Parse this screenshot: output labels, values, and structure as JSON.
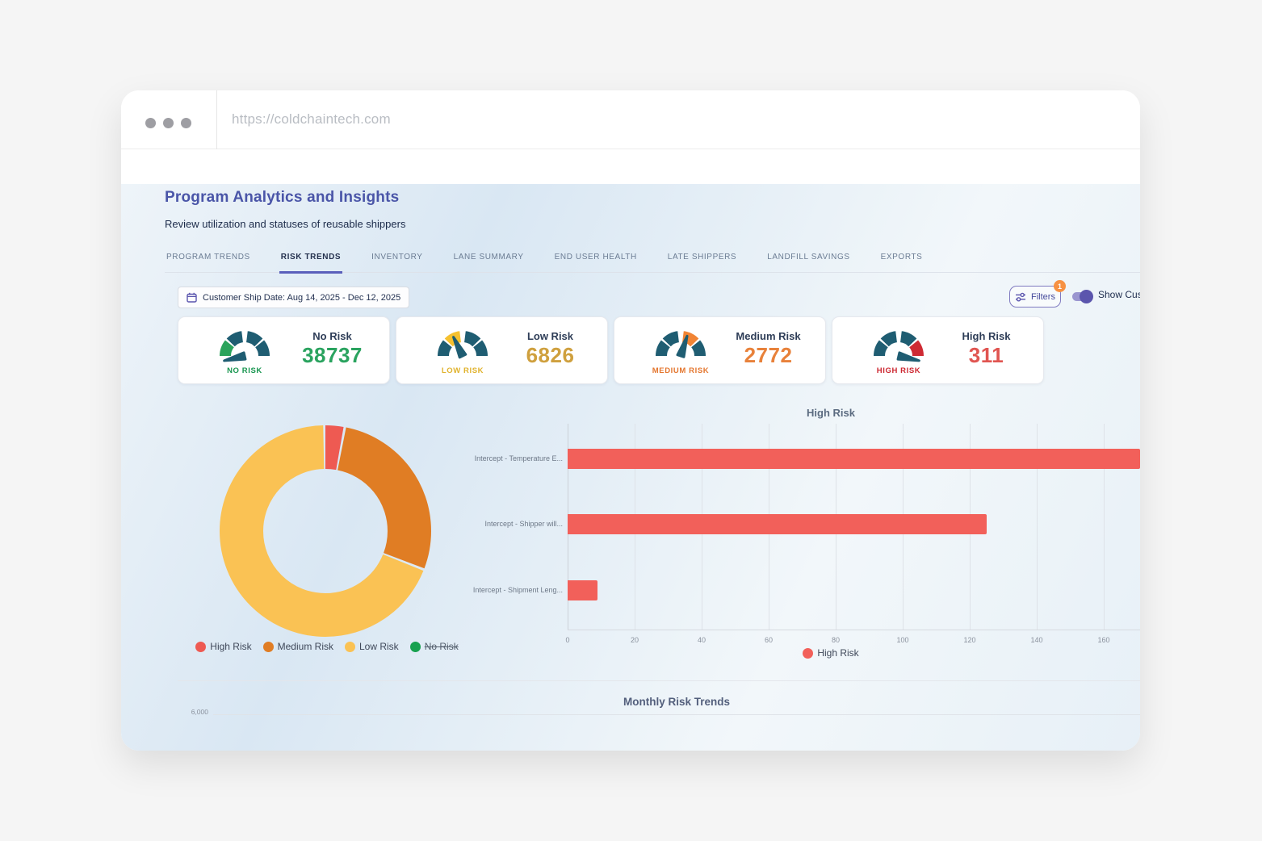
{
  "browser": {
    "url": "https://coldchaintech.com"
  },
  "page": {
    "title": "Program Analytics and Insights",
    "subtitle": "Review utilization and statuses of reusable shippers"
  },
  "tabs": [
    {
      "label": "PROGRAM TRENDS",
      "active": false
    },
    {
      "label": "RISK TRENDS",
      "active": true
    },
    {
      "label": "INVENTORY",
      "active": false
    },
    {
      "label": "LANE SUMMARY",
      "active": false
    },
    {
      "label": "END USER HEALTH",
      "active": false
    },
    {
      "label": "LATE SHIPPERS",
      "active": false
    },
    {
      "label": "LANDFILL SAVINGS",
      "active": false
    },
    {
      "label": "EXPORTS",
      "active": false
    }
  ],
  "filters": {
    "date_label": "Customer Ship Date: Aug 14, 2025 - Dec 12, 2025",
    "filters_label": "Filters",
    "badge_count": "1",
    "toggle_label": "Show Custo",
    "toggle_on": true
  },
  "summary_cards": [
    {
      "label": "No Risk",
      "value": "38737",
      "caption": "NO RISK",
      "accent": "#2aa35b",
      "value_color": "#2aa35f",
      "caption_color": "#17954f",
      "segment": 0,
      "needle_deg": 193
    },
    {
      "label": "Low Risk",
      "value": "6826",
      "caption": "LOW RISK",
      "accent": "#f6c12f",
      "value_color": "#cfa03e",
      "caption_color": "#e0b22c",
      "segment": 1,
      "needle_deg": 116
    },
    {
      "label": "Medium Risk",
      "value": "2772",
      "caption": "MEDIUM RISK",
      "accent": "#f18434",
      "value_color": "#e8813a",
      "caption_color": "#e4762e",
      "segment": 2,
      "needle_deg": 72
    },
    {
      "label": "High Risk",
      "value": "311",
      "caption": "HIGH RISK",
      "accent": "#cf2a33",
      "value_color": "#e05551",
      "caption_color": "#cc2630",
      "segment": 3,
      "needle_deg": -13
    }
  ],
  "gauge_theme": {
    "base_color": "#1f5d72",
    "needle_color": "#1f5d72"
  },
  "chart_data": [
    {
      "type": "pie",
      "subtype": "doughnut",
      "legend_position": "bottom",
      "segments": [
        {
          "label": "High Risk",
          "value": 311,
          "color": "#ee5a52",
          "hidden": false
        },
        {
          "label": "Medium Risk",
          "value": 2772,
          "color": "#e07d24",
          "hidden": false
        },
        {
          "label": "Low Risk",
          "value": 6826,
          "color": "#fac254",
          "hidden": false
        },
        {
          "label": "No Risk",
          "value": 38737,
          "color": "#17a14f",
          "hidden": true
        }
      ]
    },
    {
      "type": "bar",
      "orientation": "horizontal",
      "title": "High Risk",
      "categories": [
        "Intercept - Temperature E...",
        "Intercept - Shipper will...",
        "Intercept - Shipment Leng..."
      ],
      "values": [
        171,
        125,
        9
      ],
      "bar_color": "#f2605a",
      "xlim": [
        0,
        160
      ],
      "xticks": [
        0,
        20,
        40,
        60,
        80,
        100,
        120,
        140,
        160
      ],
      "grid": true,
      "legend": [
        {
          "label": "High Risk",
          "color": "#f2605a"
        }
      ],
      "layout_note": "first bar clipped at right viewport edge"
    },
    {
      "type": "line",
      "title": "Monthly Risk Trends",
      "visible_yticks": [
        "6,000"
      ],
      "layout_note": "chart cut off by bottom of viewport"
    }
  ]
}
